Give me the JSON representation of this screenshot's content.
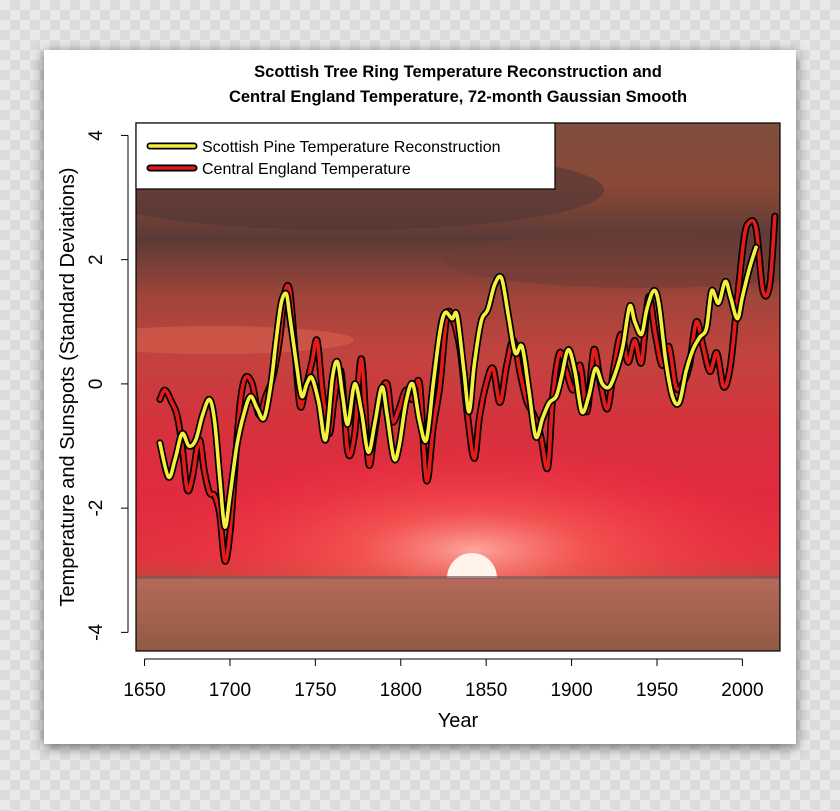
{
  "chart_data": {
    "type": "line",
    "title_line1": "Scottish Tree Ring Temperature Reconstruction and",
    "title_line2": "Central England Temperature, 72-month Gaussian Smooth",
    "xlabel": "Year",
    "ylabel": "Temperature and Sunspots (Standard Deviations)",
    "xlim": [
      1645,
      2022
    ],
    "ylim": [
      -4.3,
      4.2
    ],
    "x_ticks": [
      1650,
      1700,
      1750,
      1800,
      1850,
      1900,
      1950,
      2000
    ],
    "y_ticks": [
      4,
      2,
      0,
      -2,
      -4
    ],
    "legend_position": "top-left",
    "series": [
      {
        "name": "Scottish Pine Temperature Reconstruction",
        "color": "#f5f03c",
        "x": [
          1659,
          1664,
          1668,
          1672,
          1676,
          1680,
          1684,
          1688,
          1691,
          1694,
          1697,
          1700,
          1704,
          1708,
          1712,
          1716,
          1720,
          1724,
          1727,
          1730,
          1733,
          1735,
          1739,
          1742,
          1745,
          1748,
          1752,
          1756,
          1760,
          1763,
          1766,
          1769,
          1773,
          1777,
          1781,
          1785,
          1789,
          1792,
          1796,
          1799,
          1803,
          1807,
          1811,
          1815,
          1819,
          1823,
          1826,
          1830,
          1833,
          1837,
          1840,
          1843,
          1847,
          1851,
          1855,
          1859,
          1863,
          1867,
          1871,
          1875,
          1879,
          1883,
          1887,
          1891,
          1894,
          1898,
          1902,
          1906,
          1910,
          1914,
          1918,
          1922,
          1926,
          1930,
          1934,
          1937,
          1941,
          1944,
          1948,
          1951,
          1955,
          1959,
          1963,
          1967,
          1971,
          1975,
          1979,
          1982,
          1986,
          1990,
          1993,
          1997,
          2000,
          2004,
          2008
        ],
        "values": [
          -0.95,
          -1.5,
          -1.2,
          -0.8,
          -1.0,
          -0.9,
          -0.5,
          -0.25,
          -0.6,
          -1.5,
          -2.3,
          -1.8,
          -1.0,
          -0.5,
          -0.2,
          -0.4,
          -0.55,
          0.0,
          0.7,
          1.3,
          1.45,
          1.1,
          0.3,
          -0.2,
          0.0,
          0.1,
          -0.3,
          -0.9,
          0.1,
          0.35,
          -0.2,
          -0.65,
          0.0,
          -0.45,
          -1.1,
          -0.6,
          -0.05,
          -0.5,
          -1.2,
          -1.0,
          -0.3,
          0.0,
          -0.6,
          -0.9,
          0.0,
          0.85,
          1.15,
          1.05,
          1.1,
          0.2,
          -0.45,
          0.3,
          1.0,
          1.2,
          1.6,
          1.7,
          1.1,
          0.5,
          0.6,
          -0.1,
          -0.85,
          -0.55,
          -0.3,
          -0.2,
          0.1,
          0.55,
          0.2,
          -0.45,
          -0.2,
          0.25,
          0.0,
          -0.05,
          0.2,
          0.6,
          1.25,
          1.0,
          0.8,
          1.2,
          1.5,
          1.3,
          0.4,
          -0.2,
          -0.3,
          0.2,
          0.55,
          0.75,
          0.9,
          1.5,
          1.3,
          1.65,
          1.4,
          1.05,
          1.4,
          1.85,
          2.2
        ]
      },
      {
        "name": "Central England Temperature",
        "color": "#e21b1b",
        "x": [
          1659,
          1662,
          1666,
          1669,
          1672,
          1675,
          1678,
          1682,
          1685,
          1688,
          1691,
          1694,
          1697,
          1700,
          1703,
          1706,
          1709,
          1713,
          1717,
          1721,
          1725,
          1729,
          1732,
          1735,
          1738,
          1741,
          1744,
          1748,
          1751,
          1754,
          1758,
          1761,
          1765,
          1769,
          1773,
          1777,
          1781,
          1784,
          1788,
          1792,
          1795,
          1799,
          1803,
          1807,
          1811,
          1815,
          1819,
          1823,
          1827,
          1831,
          1835,
          1839,
          1843,
          1846,
          1850,
          1854,
          1858,
          1862,
          1866,
          1870,
          1874,
          1878,
          1882,
          1886,
          1889,
          1893,
          1897,
          1901,
          1905,
          1909,
          1913,
          1917,
          1921,
          1925,
          1929,
          1933,
          1937,
          1941,
          1945,
          1949,
          1953,
          1957,
          1961,
          1965,
          1969,
          1973,
          1977,
          1981,
          1985,
          1989,
          1993,
          1997,
          2001,
          2004,
          2008,
          2012,
          2016,
          2019
        ],
        "values": [
          -0.25,
          -0.1,
          -0.3,
          -0.5,
          -1.0,
          -1.7,
          -1.5,
          -0.9,
          -1.4,
          -1.75,
          -1.8,
          -2.1,
          -2.85,
          -2.4,
          -1.3,
          -0.3,
          0.1,
          0.0,
          -0.5,
          -0.2,
          0.1,
          0.7,
          1.45,
          1.5,
          0.55,
          -0.35,
          -0.1,
          0.35,
          0.7,
          -0.1,
          -0.8,
          -0.25,
          0.2,
          -1.1,
          -0.8,
          0.4,
          -1.25,
          -0.9,
          -0.2,
          0.0,
          -0.6,
          -0.4,
          -0.1,
          -0.25,
          0.0,
          -1.55,
          -0.7,
          0.0,
          1.1,
          1.0,
          0.5,
          -0.5,
          -1.2,
          -0.55,
          0.0,
          0.25,
          -0.3,
          0.3,
          0.7,
          0.15,
          -0.3,
          -0.5,
          -0.85,
          -1.35,
          -0.2,
          0.5,
          0.2,
          -0.1,
          0.3,
          -0.45,
          0.55,
          0.0,
          -0.4,
          0.3,
          0.8,
          0.35,
          0.7,
          0.35,
          1.4,
          0.8,
          0.3,
          0.6,
          -0.05,
          0.0,
          0.3,
          1.0,
          0.6,
          0.2,
          0.5,
          -0.05,
          0.3,
          1.35,
          2.35,
          2.6,
          2.5,
          1.5,
          1.6,
          2.7
        ]
      }
    ]
  }
}
